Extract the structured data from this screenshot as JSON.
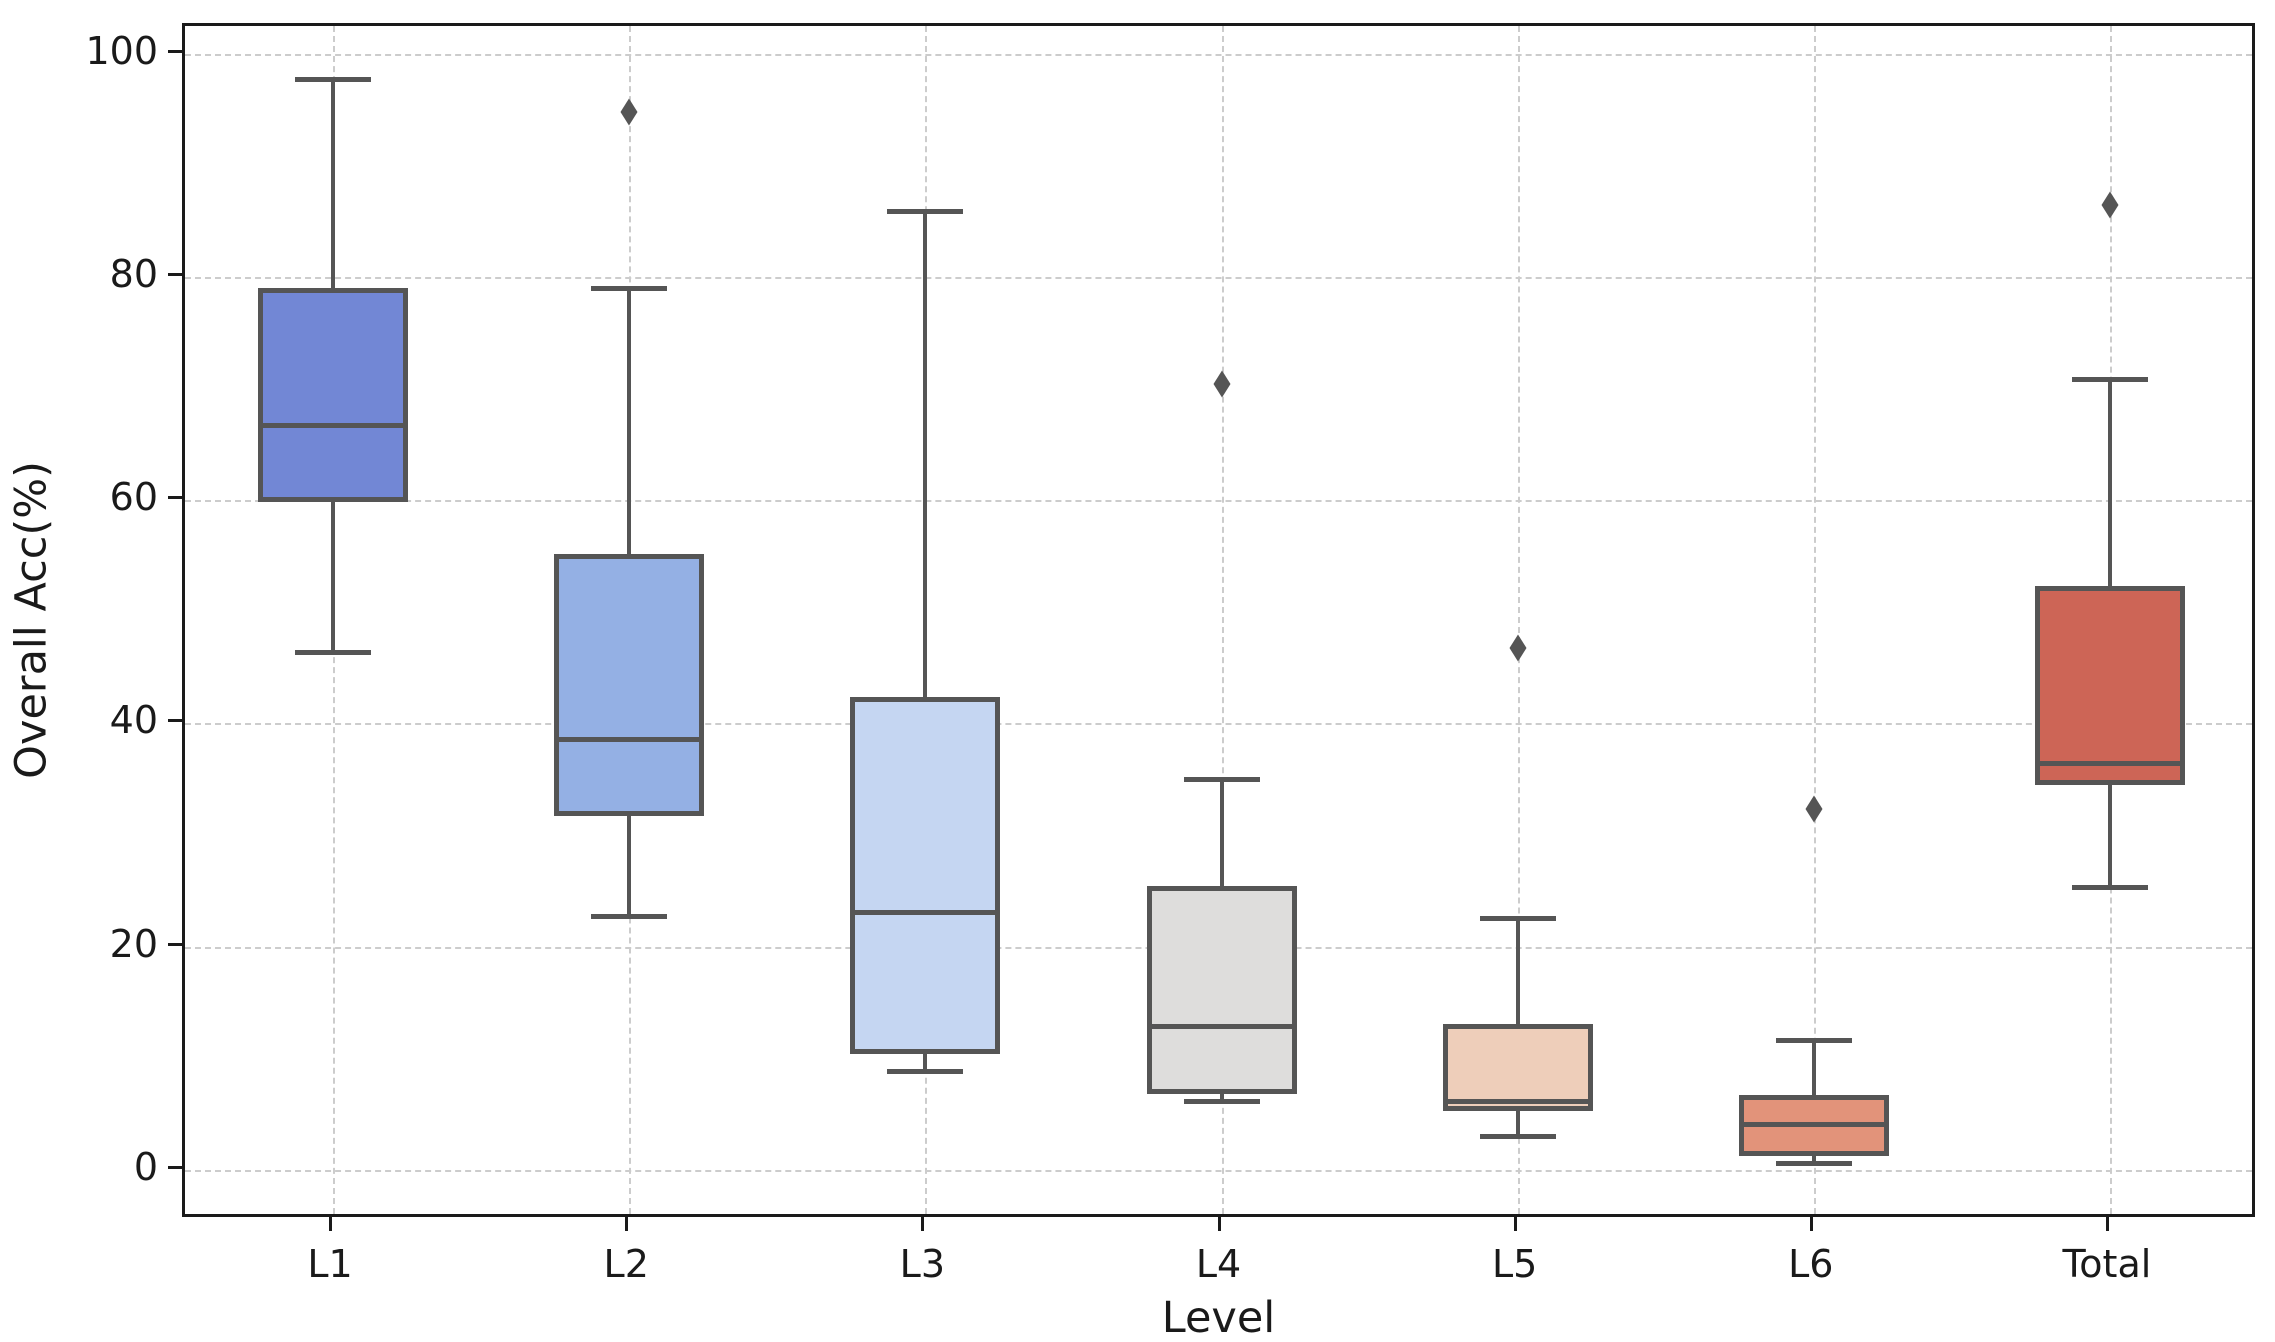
{
  "chart_data": {
    "type": "boxplot",
    "title": "",
    "xlabel": "Level",
    "ylabel": "Overall Acc(%)",
    "categories": [
      "L1",
      "L2",
      "L3",
      "L4",
      "L5",
      "L6",
      "Total"
    ],
    "y_ticks": [
      0,
      20,
      40,
      60,
      80,
      100
    ],
    "ylim": [
      -4.5,
      102.5
    ],
    "grid": "dashed, horizontal and vertical",
    "legend": "none",
    "line_color": "#555555",
    "grid_color": "#cccccc",
    "box_colors": [
      "#7287d5",
      "#94b0e4",
      "#c5d6f2",
      "#dedddc",
      "#eeceba",
      "#e2937a",
      "#cd6556"
    ],
    "boxes": [
      {
        "category": "L1",
        "whisker_low": 46.4,
        "q1": 59.8,
        "median": 66.7,
        "q3": 79.0,
        "whisker_high": 97.7,
        "outliers": []
      },
      {
        "category": "L2",
        "whisker_low": 22.7,
        "q1": 31.7,
        "median": 38.6,
        "q3": 55.2,
        "whisker_high": 79.0,
        "outliers": [
          94.8
        ]
      },
      {
        "category": "L3",
        "whisker_low": 8.8,
        "q1": 10.4,
        "median": 23.1,
        "q3": 42.4,
        "whisker_high": 85.9,
        "outliers": []
      },
      {
        "category": "L4",
        "whisker_low": 6.1,
        "q1": 6.8,
        "median": 12.8,
        "q3": 25.4,
        "whisker_high": 35.0,
        "outliers": [
          70.4
        ]
      },
      {
        "category": "L5",
        "whisker_low": 3.0,
        "q1": 5.3,
        "median": 6.1,
        "q3": 13.1,
        "whisker_high": 22.5,
        "outliers": [
          46.8
        ]
      },
      {
        "category": "L6",
        "whisker_low": 0.6,
        "q1": 1.2,
        "median": 4.1,
        "q3": 6.7,
        "whisker_high": 11.6,
        "outliers": [
          32.3
        ]
      },
      {
        "category": "Total",
        "whisker_low": 25.3,
        "q1": 34.5,
        "median": 36.4,
        "q3": 52.3,
        "whisker_high": 70.8,
        "outliers": [
          86.5
        ]
      }
    ]
  }
}
